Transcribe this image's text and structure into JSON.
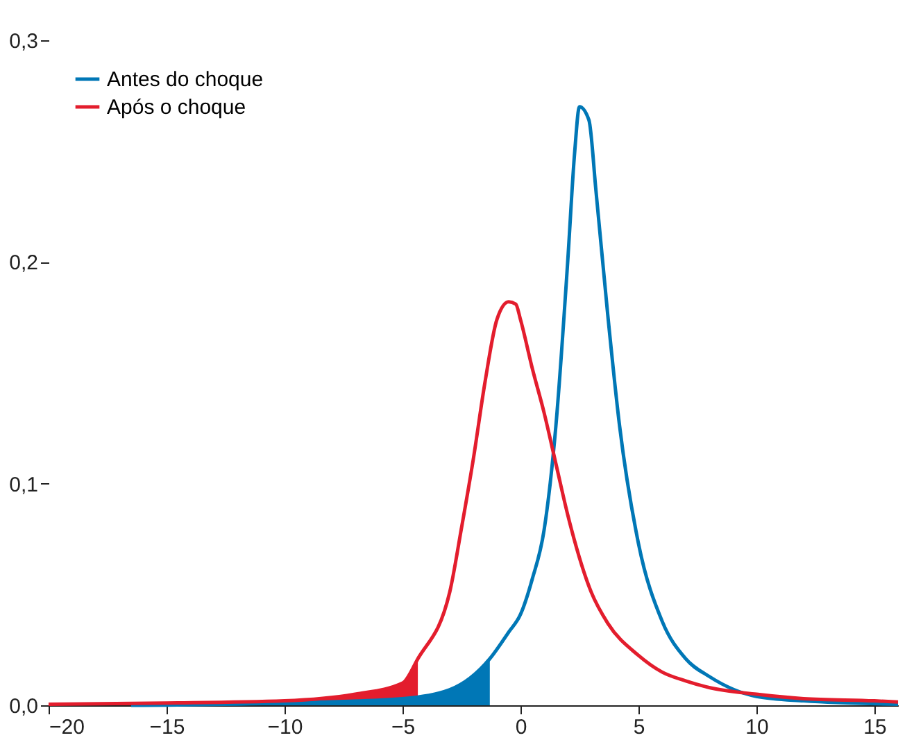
{
  "chart_data": {
    "type": "line",
    "series": [
      {
        "type": "area",
        "color": "#e31d2d",
        "x": [
          -20,
          -15,
          -10,
          -7,
          -5,
          -4.35
        ],
        "values": [
          0.0005,
          0.001,
          0.002,
          0.005,
          0.01,
          0.021
        ]
      },
      {
        "type": "area",
        "color": "#0077b6",
        "x": [
          -16.5,
          -10,
          -5,
          -3,
          -1.3
        ],
        "values": [
          0,
          0.001,
          0.003,
          0.007,
          0.021
        ]
      },
      {
        "name": "Antes do choque",
        "color": "#0077b6",
        "x": [
          -16.5,
          -10,
          -5,
          -3,
          -1.3,
          -0.5,
          0,
          0.5,
          1,
          1.5,
          2,
          2.3,
          2.5,
          2.9,
          3.2,
          3.7,
          4.2,
          5,
          6,
          7,
          8,
          10,
          12,
          16
        ],
        "values": [
          0,
          0.001,
          0.003,
          0.007,
          0.021,
          0.033,
          0.041,
          0.057,
          0.079,
          0.126,
          0.2,
          0.25,
          0.27,
          0.264,
          0.232,
          0.176,
          0.126,
          0.073,
          0.038,
          0.021,
          0.013,
          0.004,
          0.002,
          0.0005
        ]
      },
      {
        "name": "Após o choque",
        "color": "#e31d2d",
        "x": [
          -20,
          -15,
          -10,
          -7,
          -5,
          -4.35,
          -3,
          -2.5,
          -2,
          -1.5,
          -1,
          -0.5,
          -0.2,
          0,
          0.5,
          1,
          1.5,
          2,
          3,
          3.7,
          5,
          6,
          7,
          8,
          10,
          12,
          15,
          16
        ],
        "values": [
          0.0005,
          0.001,
          0.002,
          0.005,
          0.01,
          0.021,
          0.051,
          0.08,
          0.111,
          0.146,
          0.174,
          0.182,
          0.181,
          0.174,
          0.152,
          0.132,
          0.109,
          0.086,
          0.051,
          0.037,
          0.0225,
          0.015,
          0.011,
          0.008,
          0.005,
          0.003,
          0.002,
          0.0015
        ]
      }
    ],
    "xlim": [
      -20,
      16
    ],
    "xticks": [
      {
        "value": -20,
        "label": "−20"
      },
      {
        "value": -15,
        "label": "−15"
      },
      {
        "value": -10,
        "label": "−10"
      },
      {
        "value": -5,
        "label": "−5"
      },
      0,
      5,
      10,
      15
    ],
    "ylim": [
      0,
      0.3
    ],
    "yticks": [
      {
        "value": 0,
        "label": "0,0"
      },
      {
        "value": 0.1,
        "label": "0,1"
      },
      {
        "value": 0.2,
        "label": "0,2"
      },
      {
        "value": 0.3,
        "label": "0,3"
      }
    ],
    "grid": false,
    "legend": "top left",
    "marker": "none",
    "line_style": "solid"
  }
}
